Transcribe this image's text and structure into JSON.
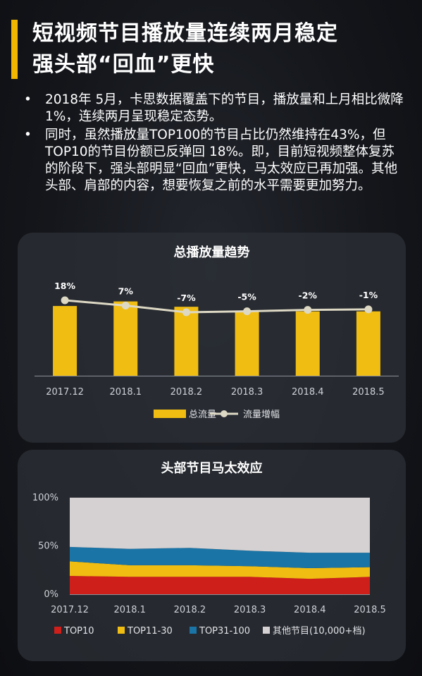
{
  "title": {
    "line1": "短视频节目播放量连续两月稳定",
    "line2": "强头部“回血”更快"
  },
  "bullets": [
    {
      "marker": "•",
      "text": "2018年 5月，卡思数据覆盖下的节目，播放量和上月相比微降 1%，连续两月呈现稳定态势。"
    },
    {
      "marker": "•",
      "text": "同时，虽然播放量TOP100的节目占比仍然维持在43%，但TOP10的节目份额已反弹回 18%。即，目前短视频整体复苏的阶段下，强头部明显“回血”更快，马太效应已再加强。其他头部、肩部的内容，想要恢复之前的水平需要更加努力。"
    }
  ],
  "colors": {
    "accent": "#f2b600",
    "bar": "#f0bd12",
    "line": "#ddd8c4",
    "top10": "#cf1f1b",
    "top11_30": "#f0bd12",
    "top31_100": "#1a74a6",
    "other": "#d5d0d1"
  },
  "chart_data": [
    {
      "type": "bar",
      "title": "总播放量趋势",
      "categories": [
        "2017.12",
        "2018.1",
        "2018.2",
        "2018.3",
        "2018.4",
        "2018.5"
      ],
      "series": [
        {
          "name": "总流量",
          "type": "bar",
          "values": [
            91,
            97,
            90,
            85,
            84,
            84
          ]
        },
        {
          "name": "流量增幅",
          "type": "line",
          "values": [
            18,
            7,
            -7,
            -5,
            -2,
            -1
          ],
          "labels": [
            "18%",
            "7%",
            "-7%",
            "-5%",
            "-2%",
            "-1%"
          ]
        }
      ],
      "legend_position": "bottom",
      "grid": false
    },
    {
      "type": "area",
      "title": "头部节目马太效应",
      "categories": [
        "2017.12",
        "2018.1",
        "2018.2",
        "2018.3",
        "2018.4",
        "2018.5"
      ],
      "yticks": [
        "0%",
        "50%",
        "100%"
      ],
      "ylim": [
        0,
        100
      ],
      "series": [
        {
          "name": "TOP10",
          "values": [
            19,
            18,
            18,
            18,
            16,
            18
          ]
        },
        {
          "name": "TOP11-30",
          "values": [
            15,
            12,
            12,
            11,
            11,
            10
          ]
        },
        {
          "name": "TOP31-100",
          "values": [
            15,
            17,
            18,
            16,
            16,
            15
          ]
        },
        {
          "name": "其他节目(10,000+档)",
          "values": [
            51,
            53,
            52,
            55,
            57,
            57
          ]
        }
      ],
      "legend_position": "bottom",
      "grid": false
    }
  ]
}
